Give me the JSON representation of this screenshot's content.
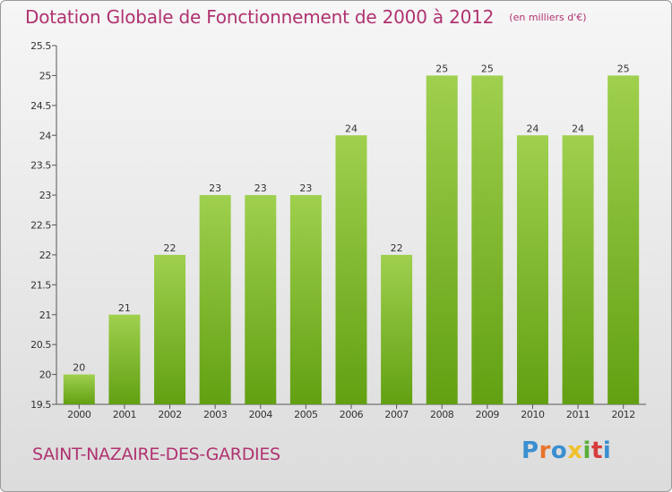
{
  "header": {
    "title": "Dotation Globale de Fonctionnement de 2000 à 2012",
    "unit_note": "(en milliers d'€)"
  },
  "footer": {
    "commune": "SAINT-NAZAIRE-DES-GARDIES",
    "logo_letters": [
      "P",
      "r",
      "o",
      "x",
      "i",
      "t",
      "i"
    ]
  },
  "colors": {
    "title": "#b03270",
    "bar_light": "#9fd04e",
    "bar_dark": "#62a012",
    "axis": "#555555"
  },
  "chart_data": {
    "type": "bar",
    "title": "Dotation Globale de Fonctionnement de 2000 à 2012",
    "subtitle": "(en milliers d'€)",
    "xlabel": "",
    "ylabel": "",
    "categories": [
      "2000",
      "2001",
      "2002",
      "2003",
      "2004",
      "2005",
      "2006",
      "2007",
      "2008",
      "2009",
      "2010",
      "2011",
      "2012"
    ],
    "values": [
      20,
      21,
      22,
      23,
      23,
      23,
      24,
      22,
      25,
      25,
      24,
      24,
      25
    ],
    "data_labels": [
      "20",
      "21",
      "22",
      "23",
      "23",
      "23",
      "24",
      "22",
      "25",
      "25",
      "24",
      "24",
      "25"
    ],
    "ylim": [
      19.5,
      25.5
    ],
    "yticks": [
      19.5,
      20,
      20.5,
      21,
      21.5,
      22,
      22.5,
      23,
      23.5,
      24,
      24.5,
      25,
      25.5
    ],
    "ytick_labels": [
      "19.5",
      "20",
      "20.5",
      "21",
      "21.5",
      "22",
      "22.5",
      "23",
      "23.5",
      "24",
      "24.5",
      "25",
      "25.5"
    ],
    "grid": false,
    "legend": "none"
  }
}
